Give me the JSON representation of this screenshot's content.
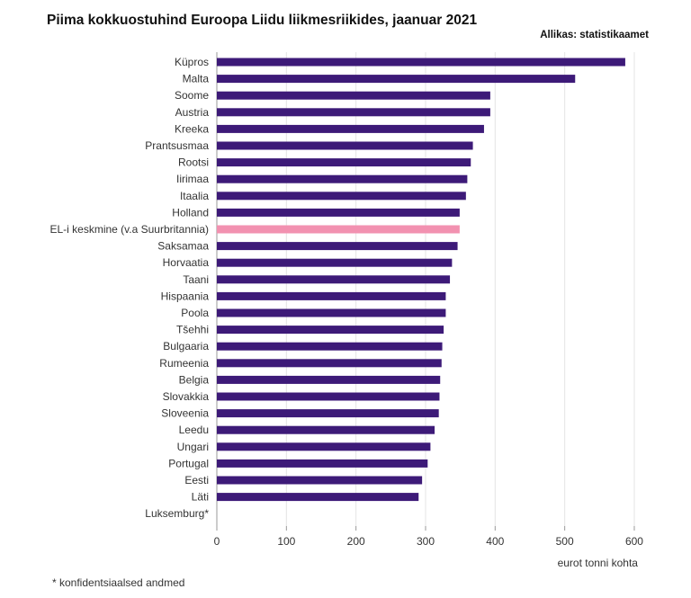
{
  "title": "Piima kokkuostuhind Euroopa Liidu liikmesriikides, jaanuar 2021",
  "source": "Allikas: statistikaamet",
  "footnote": "* konfidentsiaalsed andmed",
  "colors": {
    "bar": "#3d1a78",
    "highlight": "#f291b0",
    "grid": "#e4e4e4",
    "axis": "#999999"
  },
  "chart_data": {
    "type": "bar",
    "orientation": "horizontal",
    "title": "Piima kokkuostuhind Euroopa Liidu liikmesriikides, jaanuar 2021",
    "xlabel": "eurot tonni kohta",
    "ylabel": "",
    "xlim": [
      0,
      600
    ],
    "xticks": [
      0,
      100,
      200,
      300,
      400,
      500,
      600
    ],
    "grid": true,
    "categories": [
      "Küpros",
      "Malta",
      "Soome",
      "Austria",
      "Kreeka",
      "Prantsusmaa",
      "Rootsi",
      "Iirimaa",
      "Itaalia",
      "Holland",
      "EL-i keskmine (v.a Suurbritannia)",
      "Saksamaa",
      "Horvaatia",
      "Taani",
      "Hispaania",
      "Poola",
      "Tšehhi",
      "Bulgaaria",
      "Rumeenia",
      "Belgia",
      "Slovakkia",
      "Sloveenia",
      "Leedu",
      "Ungari",
      "Portugal",
      "Eesti",
      "Läti",
      "Luksemburg*"
    ],
    "values": [
      587,
      515,
      393,
      393,
      384,
      368,
      365,
      360,
      358,
      349,
      349,
      346,
      338,
      335,
      329,
      329,
      326,
      324,
      323,
      321,
      320,
      319,
      313,
      307,
      303,
      295,
      290,
      null
    ],
    "highlight": [
      "EL-i keskmine (v.a Suurbritannia)"
    ]
  }
}
